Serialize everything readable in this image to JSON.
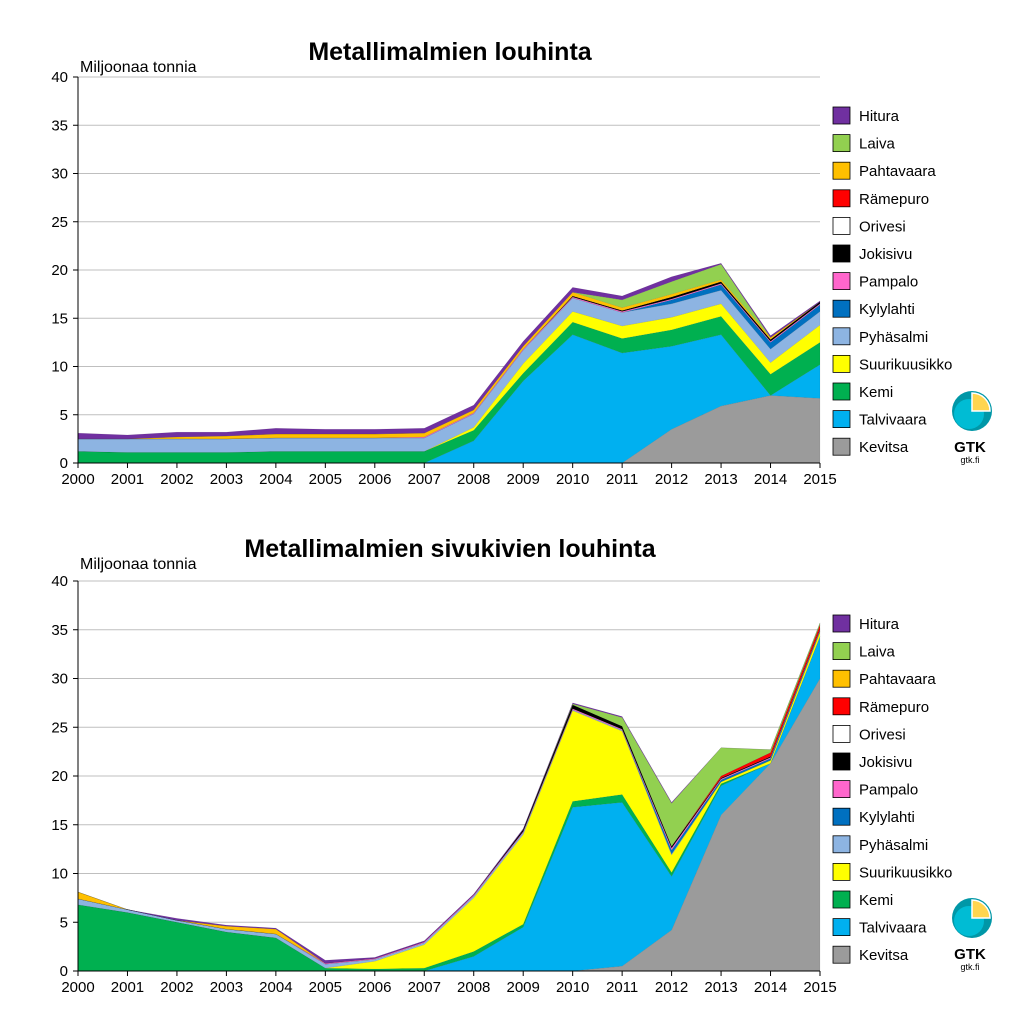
{
  "legend_order": [
    "Hitura",
    "Laiva",
    "Pahtavaara",
    "Rämepuro",
    "Orivesi",
    "Jokisivu",
    "Pampalo",
    "Kylylahti",
    "Pyhäsalmi",
    "Suurikuusikko",
    "Kemi",
    "Talvivaara",
    "Kevitsa"
  ],
  "series_colors": {
    "Kevitsa": "#9b9b9b",
    "Talvivaara": "#00b0f0",
    "Kemi": "#00b050",
    "Suurikuusikko": "#ffff00",
    "Pyhäsalmi": "#8db4e2",
    "Kylylahti": "#0070c0",
    "Pampalo": "#ff66cc",
    "Jokisivu": "#000000",
    "Orivesi": "#ffffff",
    "Rämepuro": "#ff0000",
    "Pahtavaara": "#ffc000",
    "Laiva": "#92d050",
    "Hitura": "#7030a0"
  },
  "logo": {
    "mark": "GTK",
    "url": "gtk.fi"
  },
  "chart_data": [
    {
      "type": "area",
      "stacked": true,
      "title": "Metallimalmien louhinta",
      "ylabel": "Miljoonaa tonnia",
      "ylim": [
        0,
        40
      ],
      "yticks": [
        0,
        5,
        10,
        15,
        20,
        25,
        30,
        35,
        40
      ],
      "grid": true,
      "legend_position": "right",
      "x": [
        "2000",
        "2001",
        "2002",
        "2003",
        "2004",
        "2005",
        "2006",
        "2007",
        "2008",
        "2009",
        "2010",
        "2011",
        "2012",
        "2013",
        "2014",
        "2015"
      ],
      "series": [
        {
          "name": "Kevitsa",
          "values": [
            0,
            0,
            0,
            0,
            0,
            0,
            0,
            0,
            0,
            0,
            0,
            0,
            3.5,
            5.9,
            7.0,
            6.7
          ]
        },
        {
          "name": "Talvivaara",
          "values": [
            0,
            0,
            0,
            0,
            0,
            0,
            0,
            0,
            2.3,
            8.5,
            13.3,
            11.4,
            8.6,
            7.4,
            0,
            3.5
          ]
        },
        {
          "name": "Kemi",
          "values": [
            1.2,
            1.1,
            1.1,
            1.1,
            1.2,
            1.2,
            1.2,
            1.2,
            1.1,
            0.8,
            1.3,
            1.5,
            1.7,
            1.9,
            2.2,
            2.3
          ]
        },
        {
          "name": "Suurikuusikko",
          "values": [
            0,
            0,
            0,
            0,
            0,
            0,
            0,
            0,
            0.3,
            1.0,
            1.1,
            1.3,
            1.3,
            1.3,
            1.2,
            1.8
          ]
        },
        {
          "name": "Pyhäsalmi",
          "values": [
            1.3,
            1.4,
            1.4,
            1.4,
            1.4,
            1.4,
            1.4,
            1.4,
            1.4,
            1.4,
            1.4,
            1.4,
            1.4,
            1.4,
            1.4,
            1.4
          ]
        },
        {
          "name": "Kylylahti",
          "values": [
            0,
            0,
            0,
            0,
            0,
            0,
            0,
            0,
            0,
            0,
            0,
            0,
            0.4,
            0.6,
            0.7,
            0.7
          ]
        },
        {
          "name": "Pampalo",
          "values": [
            0,
            0,
            0,
            0,
            0,
            0,
            0,
            0.1,
            0.1,
            0.1,
            0.1,
            0.1,
            0.1,
            0.1,
            0.1,
            0.1
          ]
        },
        {
          "name": "Jokisivu",
          "values": [
            0,
            0,
            0,
            0,
            0,
            0,
            0,
            0,
            0,
            0,
            0.1,
            0.1,
            0.2,
            0.2,
            0.2,
            0.2
          ]
        },
        {
          "name": "Orivesi",
          "values": [
            0,
            0,
            0,
            0,
            0,
            0,
            0,
            0,
            0,
            0,
            0,
            0,
            0,
            0,
            0,
            0
          ]
        },
        {
          "name": "Rämepuro",
          "values": [
            0,
            0,
            0,
            0,
            0,
            0,
            0,
            0,
            0,
            0,
            0,
            0,
            0,
            0,
            0,
            0
          ]
        },
        {
          "name": "Pahtavaara",
          "values": [
            0,
            0,
            0.2,
            0.3,
            0.4,
            0.4,
            0.4,
            0.4,
            0.3,
            0.3,
            0.4,
            0.3,
            0.3,
            0.2,
            0.2,
            0
          ]
        },
        {
          "name": "Laiva",
          "values": [
            0,
            0,
            0,
            0,
            0,
            0,
            0,
            0,
            0,
            0,
            0,
            0.8,
            1.3,
            1.6,
            0,
            0
          ]
        },
        {
          "name": "Hitura",
          "values": [
            0.6,
            0.4,
            0.5,
            0.4,
            0.6,
            0.5,
            0.5,
            0.5,
            0.5,
            0.5,
            0.5,
            0.4,
            0.5,
            0.1,
            0.2,
            0.1
          ]
        }
      ]
    },
    {
      "type": "area",
      "stacked": true,
      "title": "Metallimalmien sivukivien louhinta",
      "ylabel": "Miljoonaa tonnia",
      "ylim": [
        0,
        40
      ],
      "yticks": [
        0,
        5,
        10,
        15,
        20,
        25,
        30,
        35,
        40
      ],
      "grid": true,
      "legend_position": "right",
      "x": [
        "2000",
        "2001",
        "2002",
        "2003",
        "2004",
        "2005",
        "2006",
        "2007",
        "2008",
        "2009",
        "2010",
        "2011",
        "2012",
        "2013",
        "2014",
        "2015"
      ],
      "series": [
        {
          "name": "Kevitsa",
          "values": [
            0,
            0,
            0,
            0,
            0,
            0,
            0,
            0,
            0,
            0,
            0,
            0.5,
            4.2,
            16.0,
            21.3,
            30.0
          ]
        },
        {
          "name": "Talvivaara",
          "values": [
            0,
            0,
            0,
            0,
            0,
            0,
            0,
            0,
            1.5,
            4.5,
            16.8,
            16.8,
            5.5,
            3.0,
            0,
            4.3
          ]
        },
        {
          "name": "Kemi",
          "values": [
            6.8,
            6.0,
            5.0,
            4.0,
            3.4,
            0.3,
            0.2,
            0.3,
            0.5,
            0.3,
            0.6,
            0.8,
            0.4,
            0.2,
            0,
            0
          ]
        },
        {
          "name": "Suurikuusikko",
          "values": [
            0,
            0,
            0,
            0,
            0,
            0,
            0.8,
            2.4,
            5.5,
            9.2,
            9.3,
            6.5,
            1.8,
            0.2,
            0.3,
            0.5
          ]
        },
        {
          "name": "Pyhäsalmi",
          "values": [
            0.6,
            0.3,
            0.2,
            0.3,
            0.4,
            0.4,
            0.2,
            0.2,
            0.2,
            0.2,
            0.1,
            0.1,
            0.1,
            0,
            0,
            0
          ]
        },
        {
          "name": "Kylylahti",
          "values": [
            0,
            0,
            0,
            0,
            0,
            0,
            0,
            0,
            0,
            0,
            0,
            0,
            0.4,
            0.2,
            0.2,
            0.1
          ]
        },
        {
          "name": "Pampalo",
          "values": [
            0,
            0,
            0,
            0,
            0,
            0.1,
            0.1,
            0.1,
            0.1,
            0.1,
            0.1,
            0.1,
            0.2,
            0.1,
            0.1,
            0.1
          ]
        },
        {
          "name": "Jokisivu",
          "values": [
            0,
            0,
            0,
            0,
            0,
            0,
            0,
            0,
            0,
            0.2,
            0.4,
            0.3,
            0.2,
            0.1,
            0.1,
            0.1
          ]
        },
        {
          "name": "Orivesi",
          "values": [
            0,
            0,
            0,
            0,
            0,
            0,
            0,
            0,
            0,
            0,
            0,
            0,
            0,
            0,
            0,
            0
          ]
        },
        {
          "name": "Rämepuro",
          "values": [
            0,
            0,
            0,
            0,
            0,
            0,
            0,
            0,
            0,
            0,
            0,
            0,
            0,
            0.2,
            0.4,
            0.4
          ]
        },
        {
          "name": "Pahtavaara",
          "values": [
            0.7,
            0,
            0,
            0.3,
            0.5,
            0,
            0,
            0,
            0,
            0,
            0,
            0,
            0,
            0,
            0,
            0
          ]
        },
        {
          "name": "Laiva",
          "values": [
            0,
            0,
            0,
            0,
            0,
            0,
            0,
            0,
            0,
            0,
            0.1,
            0.9,
            4.4,
            2.9,
            0.3,
            0.2
          ]
        },
        {
          "name": "Hitura",
          "values": [
            0,
            0,
            0.2,
            0.1,
            0.1,
            0.3,
            0.1,
            0.1,
            0.1,
            0.1,
            0.1,
            0.1,
            0.1,
            0,
            0,
            0
          ]
        }
      ]
    }
  ]
}
